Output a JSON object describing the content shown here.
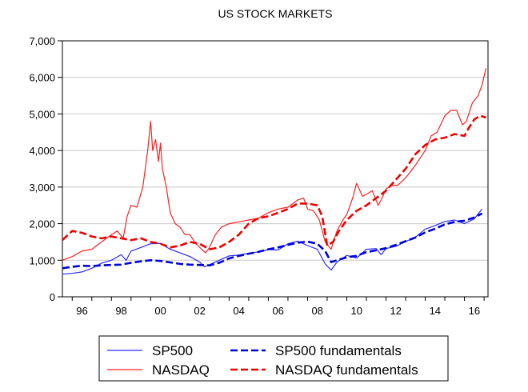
{
  "chart_data": {
    "type": "line",
    "title": "US STOCK MARKETS",
    "xlabel": "",
    "ylabel": "",
    "xlim": [
      1995.5,
      2017.2
    ],
    "ylim": [
      0,
      7000
    ],
    "x_ticks": [
      "96",
      "98",
      "00",
      "02",
      "04",
      "06",
      "08",
      "10",
      "12",
      "14",
      "16"
    ],
    "y_ticks": [
      "0",
      "1,000",
      "2,000",
      "3,000",
      "4,000",
      "5,000",
      "6,000",
      "7,000"
    ],
    "grid": "horizontal",
    "legend_position": "bottom",
    "colors": {
      "SP500": "#2b2bff",
      "SP500 fundamentals": "#0000dd",
      "NASDAQ": "#ff2020",
      "NASDAQ fundamentals": "#ee0000"
    },
    "series": [
      {
        "name": "SP500",
        "style": "solid",
        "x": [
          1995.5,
          1996.0,
          1996.5,
          1997.0,
          1997.5,
          1998.0,
          1998.5,
          1998.75,
          1999.0,
          1999.5,
          2000.0,
          2000.5,
          2001.0,
          2001.5,
          2002.0,
          2002.5,
          2002.75,
          2003.0,
          2003.5,
          2004.0,
          2004.5,
          2005.0,
          2005.5,
          2006.0,
          2006.5,
          2007.0,
          2007.5,
          2008.0,
          2008.5,
          2008.9,
          2009.2,
          2009.5,
          2010.0,
          2010.5,
          2011.0,
          2011.5,
          2011.75,
          2012.0,
          2012.5,
          2013.0,
          2013.5,
          2014.0,
          2014.5,
          2015.0,
          2015.5,
          2016.0,
          2016.5,
          2016.9
        ],
        "y": [
          620,
          640,
          680,
          780,
          920,
          1000,
          1150,
          1000,
          1250,
          1350,
          1450,
          1460,
          1300,
          1200,
          1100,
          950,
          820,
          880,
          1000,
          1120,
          1140,
          1190,
          1230,
          1290,
          1280,
          1450,
          1520,
          1400,
          1300,
          900,
          730,
          950,
          1130,
          1060,
          1300,
          1320,
          1150,
          1320,
          1380,
          1510,
          1630,
          1850,
          1950,
          2060,
          2100,
          2000,
          2130,
          2400
        ]
      },
      {
        "name": "SP500 fundamentals",
        "style": "dashed",
        "x": [
          1995.5,
          1996.0,
          1996.5,
          1997.0,
          1997.5,
          1998.0,
          1998.5,
          1999.0,
          1999.5,
          2000.0,
          2000.5,
          2001.0,
          2001.5,
          2002.0,
          2002.5,
          2003.0,
          2003.5,
          2004.0,
          2004.5,
          2005.0,
          2005.5,
          2006.0,
          2006.5,
          2007.0,
          2007.5,
          2008.0,
          2008.5,
          2008.9,
          2009.2,
          2009.5,
          2010.0,
          2010.5,
          2011.0,
          2011.5,
          2012.0,
          2012.5,
          2013.0,
          2013.5,
          2014.0,
          2014.5,
          2015.0,
          2015.5,
          2016.0,
          2016.5,
          2016.9
        ],
        "y": [
          780,
          820,
          850,
          840,
          860,
          870,
          880,
          930,
          970,
          1000,
          980,
          940,
          900,
          880,
          870,
          860,
          930,
          1050,
          1120,
          1180,
          1230,
          1300,
          1350,
          1420,
          1480,
          1510,
          1450,
          1250,
          950,
          1000,
          1080,
          1120,
          1220,
          1270,
          1330,
          1420,
          1520,
          1620,
          1760,
          1860,
          1980,
          2050,
          2080,
          2170,
          2280
        ]
      },
      {
        "name": "NASDAQ",
        "style": "solid",
        "x": [
          1995.5,
          1996.0,
          1996.5,
          1997.0,
          1997.5,
          1998.0,
          1998.3,
          1998.6,
          1998.8,
          1999.0,
          1999.3,
          1999.6,
          1999.85,
          2000.0,
          2000.1,
          2000.25,
          2000.4,
          2000.5,
          2000.6,
          2000.8,
          2001.0,
          2001.25,
          2001.5,
          2001.75,
          2002.0,
          2002.3,
          2002.6,
          2002.8,
          2003.0,
          2003.3,
          2003.6,
          2004.0,
          2004.5,
          2005.0,
          2005.5,
          2006.0,
          2006.5,
          2007.0,
          2007.5,
          2007.8,
          2008.0,
          2008.3,
          2008.6,
          2008.9,
          2009.2,
          2009.5,
          2009.8,
          2010.0,
          2010.3,
          2010.5,
          2010.8,
          2011.0,
          2011.3,
          2011.6,
          2011.8,
          2012.0,
          2012.3,
          2012.6,
          2013.0,
          2013.5,
          2014.0,
          2014.3,
          2014.6,
          2015.0,
          2015.3,
          2015.6,
          2015.9,
          2016.1,
          2016.4,
          2016.7,
          2016.9,
          2017.1
        ],
        "y": [
          1000,
          1100,
          1250,
          1300,
          1500,
          1700,
          1800,
          1600,
          2200,
          2500,
          2450,
          3000,
          4000,
          4800,
          4000,
          4300,
          3700,
          4200,
          3500,
          3000,
          2300,
          2000,
          1900,
          1700,
          1700,
          1450,
          1300,
          1200,
          1350,
          1700,
          1900,
          2000,
          2050,
          2100,
          2150,
          2300,
          2400,
          2450,
          2650,
          2700,
          2400,
          2350,
          2100,
          1500,
          1300,
          1800,
          2100,
          2250,
          2700,
          3100,
          2750,
          2800,
          2900,
          2500,
          2700,
          2950,
          3050,
          3050,
          3250,
          3600,
          4000,
          4400,
          4500,
          4950,
          5100,
          5100,
          4700,
          4800,
          5300,
          5500,
          5800,
          6250
        ]
      },
      {
        "name": "NASDAQ fundamentals",
        "style": "dashed",
        "x": [
          1995.5,
          1996.0,
          1996.5,
          1997.0,
          1997.5,
          1998.0,
          1998.5,
          1999.0,
          1999.5,
          2000.0,
          2000.5,
          2001.0,
          2001.5,
          2002.0,
          2002.5,
          2003.0,
          2003.5,
          2004.0,
          2004.5,
          2005.0,
          2005.5,
          2006.0,
          2006.5,
          2007.0,
          2007.5,
          2008.0,
          2008.5,
          2008.75,
          2009.0,
          2009.3,
          2009.6,
          2010.0,
          2010.5,
          2011.0,
          2011.5,
          2012.0,
          2012.5,
          2013.0,
          2013.5,
          2014.0,
          2014.5,
          2015.0,
          2015.5,
          2016.0,
          2016.2,
          2016.5,
          2016.8,
          2017.1
        ],
        "y": [
          1550,
          1800,
          1750,
          1650,
          1600,
          1650,
          1600,
          1550,
          1600,
          1500,
          1450,
          1350,
          1400,
          1500,
          1450,
          1300,
          1350,
          1500,
          1700,
          2000,
          2150,
          2200,
          2300,
          2400,
          2550,
          2550,
          2500,
          2200,
          1400,
          1500,
          1800,
          2100,
          2350,
          2500,
          2700,
          2900,
          3200,
          3500,
          3900,
          4150,
          4300,
          4350,
          4450,
          4400,
          4600,
          4850,
          4950,
          4900
        ]
      }
    ]
  }
}
